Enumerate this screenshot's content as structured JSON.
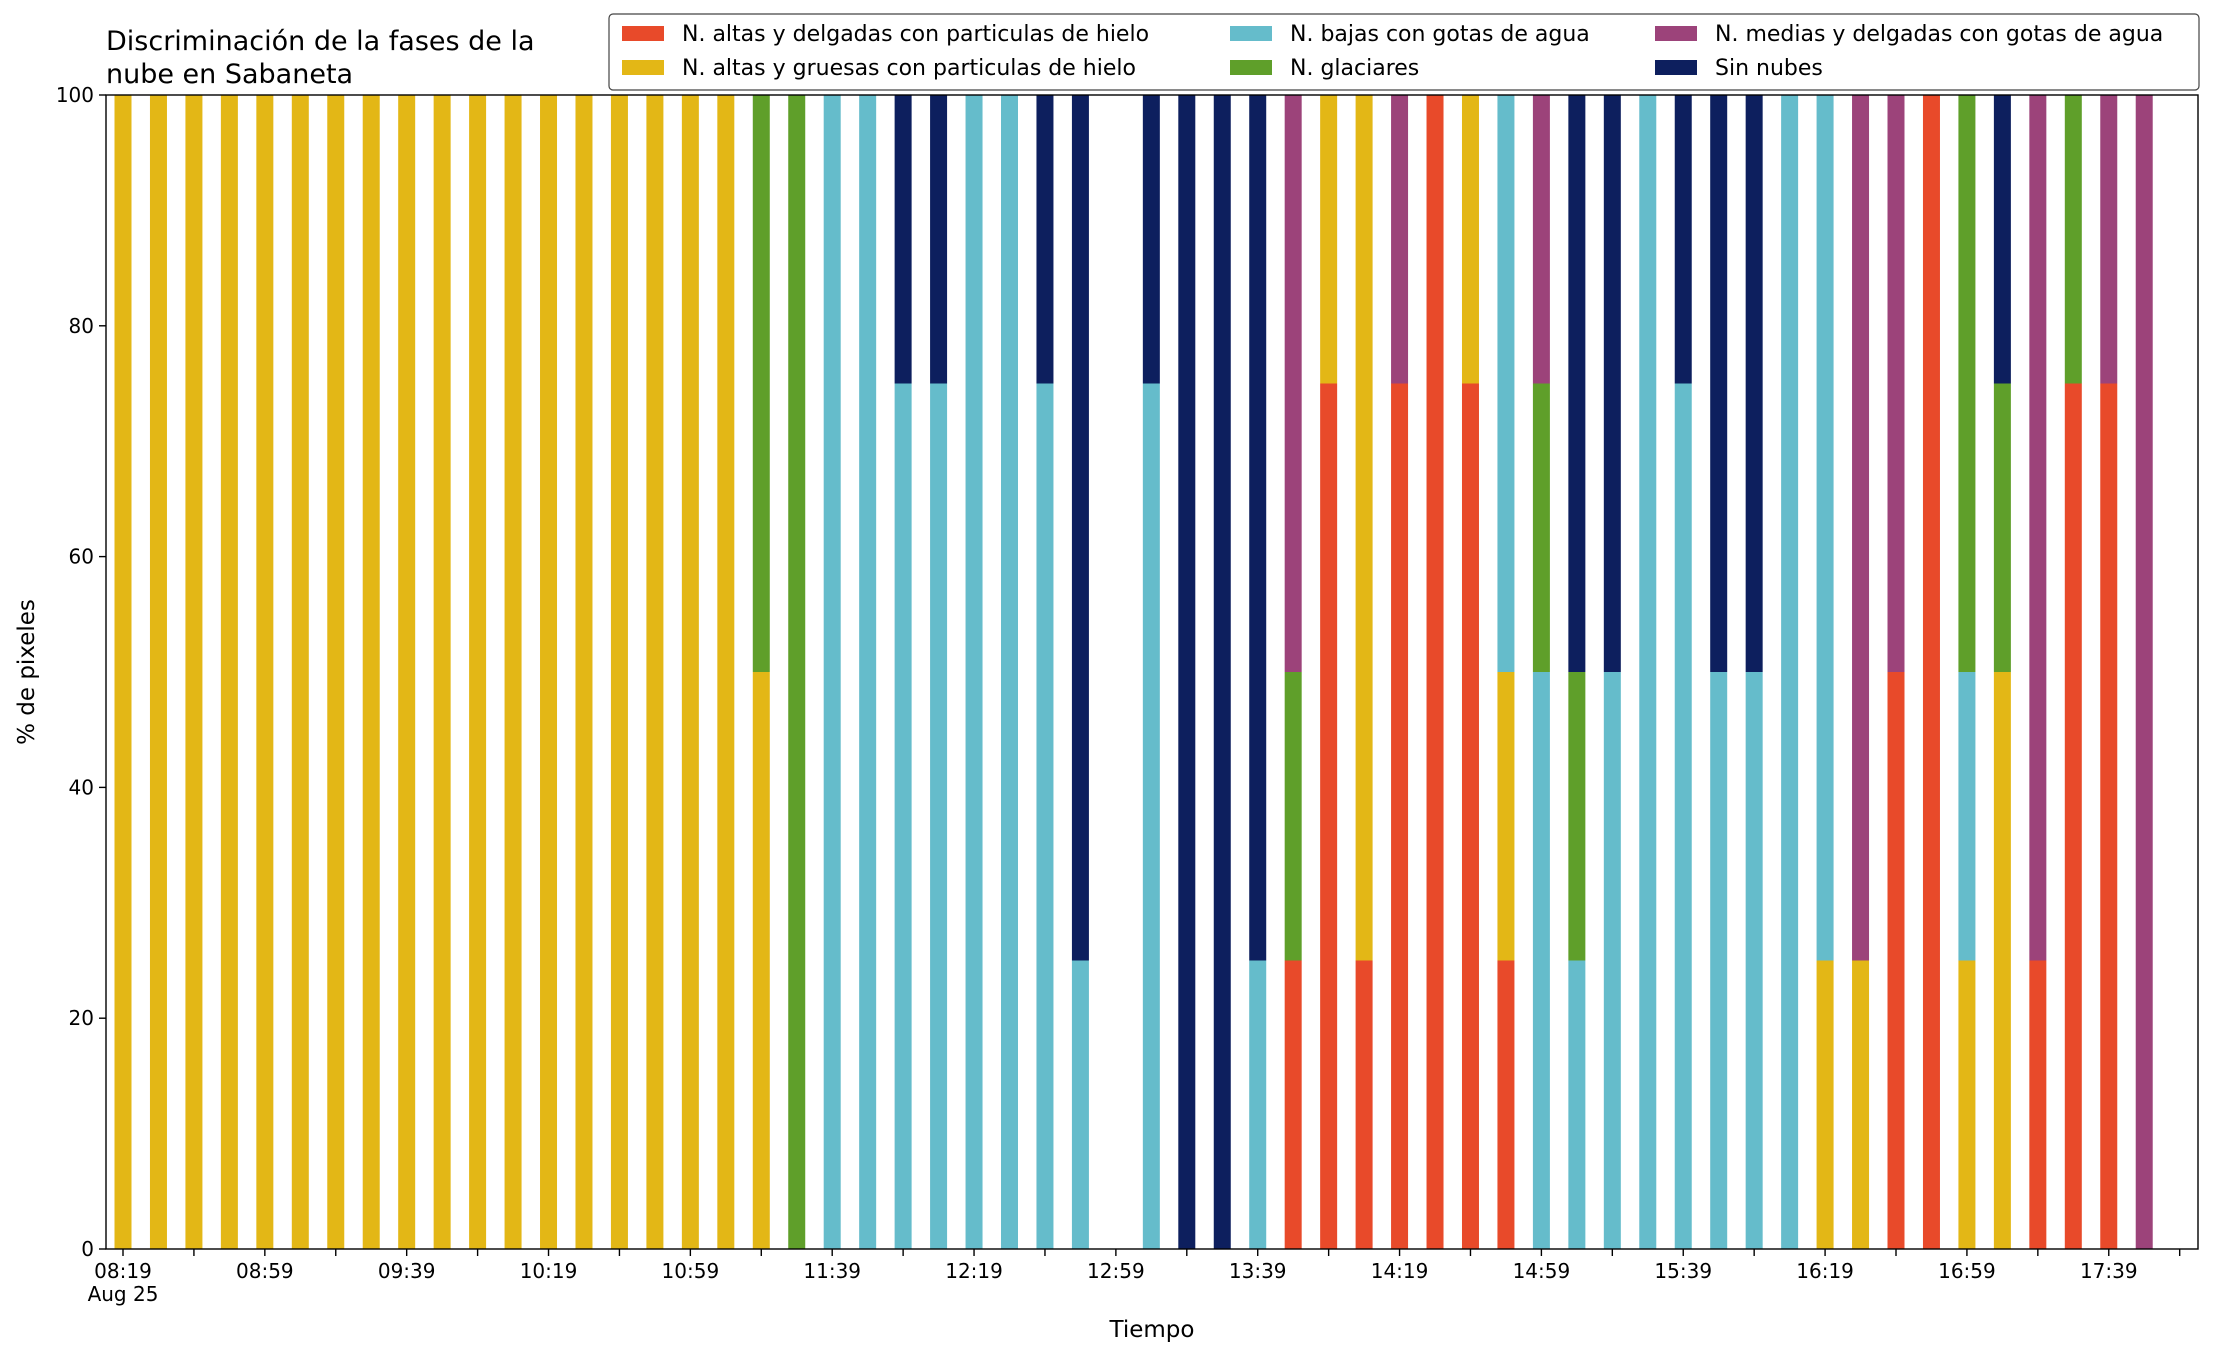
{
  "chart_data": {
    "type": "stacked_bar",
    "title": [
      "Discriminación de la fases de la",
      "nube en Sabaneta"
    ],
    "xlabel": "Tiempo",
    "ylabel": "% de pixeles",
    "x_date_label": "Aug 25",
    "categories": [
      "08:19",
      null,
      null,
      null,
      "08:59",
      null,
      null,
      null,
      "09:39",
      null,
      null,
      null,
      "10:19",
      null,
      null,
      null,
      "10:59",
      null,
      null,
      null,
      "11:39",
      null,
      null,
      null,
      "12:19",
      null,
      null,
      null,
      "12:59",
      null,
      null,
      null,
      "13:39",
      null,
      null,
      null,
      "14:19",
      null,
      null,
      null,
      "14:59",
      null,
      null,
      null,
      "15:39",
      null,
      null,
      null,
      "16:19",
      null,
      null,
      null,
      "16:59",
      null,
      null,
      null,
      "17:39",
      null
    ],
    "ylim": [
      0,
      100
    ],
    "yticks": [
      0,
      20,
      40,
      60,
      80,
      100
    ],
    "legend": "top-right",
    "series": [
      {
        "name": "N. altas y delgadas con particulas de hielo",
        "color": "#e84a2a",
        "values": [
          0,
          0,
          0,
          0,
          0,
          0,
          0,
          0,
          0,
          0,
          0,
          0,
          0,
          0,
          0,
          0,
          0,
          0,
          0,
          0,
          0,
          0,
          0,
          0,
          0,
          0,
          0,
          0,
          0,
          0,
          0,
          0,
          0,
          25,
          75,
          25,
          75,
          100,
          75,
          25,
          0,
          0,
          0,
          0,
          0,
          0,
          0,
          0,
          0,
          0,
          50,
          100,
          0,
          0,
          25,
          75,
          75,
          0
        ]
      },
      {
        "name": "N. altas y gruesas con particulas de hielo",
        "color": "#e3b716",
        "values": [
          100,
          100,
          100,
          100,
          100,
          100,
          100,
          100,
          100,
          100,
          100,
          100,
          100,
          100,
          100,
          100,
          100,
          100,
          50,
          0,
          0,
          0,
          0,
          0,
          0,
          0,
          0,
          0,
          0,
          0,
          0,
          0,
          0,
          0,
          25,
          75,
          0,
          0,
          25,
          25,
          0,
          0,
          0,
          0,
          0,
          0,
          0,
          0,
          25,
          25,
          0,
          0,
          25,
          50,
          0,
          0,
          0,
          0
        ]
      },
      {
        "name": "N. bajas con gotas de agua",
        "color": "#65bccb",
        "values": [
          0,
          0,
          0,
          0,
          0,
          0,
          0,
          0,
          0,
          0,
          0,
          0,
          0,
          0,
          0,
          0,
          0,
          0,
          0,
          0,
          100,
          100,
          75,
          75,
          100,
          100,
          75,
          25,
          0,
          75,
          0,
          0,
          25,
          0,
          0,
          0,
          0,
          0,
          0,
          50,
          50,
          25,
          50,
          100,
          75,
          50,
          50,
          100,
          75,
          0,
          0,
          0,
          25,
          0,
          0,
          0,
          0,
          0
        ]
      },
      {
        "name": "N. glaciares",
        "color": "#5f9f2a",
        "values": [
          0,
          0,
          0,
          0,
          0,
          0,
          0,
          0,
          0,
          0,
          0,
          0,
          0,
          0,
          0,
          0,
          0,
          0,
          50,
          100,
          0,
          0,
          0,
          0,
          0,
          0,
          0,
          0,
          0,
          0,
          0,
          0,
          0,
          25,
          0,
          0,
          0,
          0,
          0,
          0,
          25,
          25,
          0,
          0,
          0,
          0,
          0,
          0,
          0,
          0,
          0,
          0,
          50,
          25,
          0,
          25,
          0,
          0
        ]
      },
      {
        "name": "N. medias y delgadas con gotas de agua",
        "color": "#9c437a",
        "values": [
          0,
          0,
          0,
          0,
          0,
          0,
          0,
          0,
          0,
          0,
          0,
          0,
          0,
          0,
          0,
          0,
          0,
          0,
          0,
          0,
          0,
          0,
          0,
          0,
          0,
          0,
          0,
          0,
          0,
          0,
          0,
          0,
          0,
          50,
          0,
          0,
          25,
          0,
          0,
          0,
          25,
          0,
          0,
          0,
          0,
          0,
          0,
          0,
          0,
          75,
          50,
          0,
          0,
          0,
          75,
          0,
          25,
          100
        ]
      },
      {
        "name": "Sin nubes",
        "color": "#0d1f5e",
        "values": [
          0,
          0,
          0,
          0,
          0,
          0,
          0,
          0,
          0,
          0,
          0,
          0,
          0,
          0,
          0,
          0,
          0,
          0,
          0,
          0,
          0,
          0,
          25,
          25,
          0,
          0,
          25,
          75,
          0,
          25,
          100,
          100,
          75,
          0,
          0,
          0,
          0,
          0,
          0,
          0,
          0,
          50,
          50,
          0,
          25,
          50,
          50,
          0,
          0,
          0,
          0,
          0,
          0,
          25,
          0,
          0,
          0,
          0
        ]
      }
    ]
  }
}
